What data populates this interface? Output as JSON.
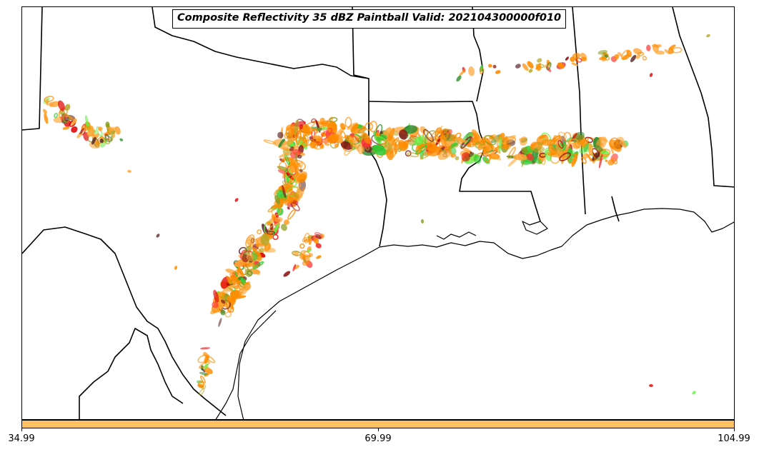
{
  "title": "Composite Reflectivity 35 dBZ Paintball Valid: 202104300000f010",
  "colorbar": {
    "color": "#ffc166",
    "ticks": [
      "34.99",
      "69.99",
      "104.99"
    ],
    "range": [
      34.99,
      104.99
    ]
  },
  "paintball_colors": [
    "#ff8c00",
    "#ffa533",
    "#e00000",
    "#ff3030",
    "#8b1010",
    "#5c2a2a",
    "#2e8b2e",
    "#33cc33",
    "#66ee44",
    "#8a9a1a",
    "#b5a82a"
  ]
}
